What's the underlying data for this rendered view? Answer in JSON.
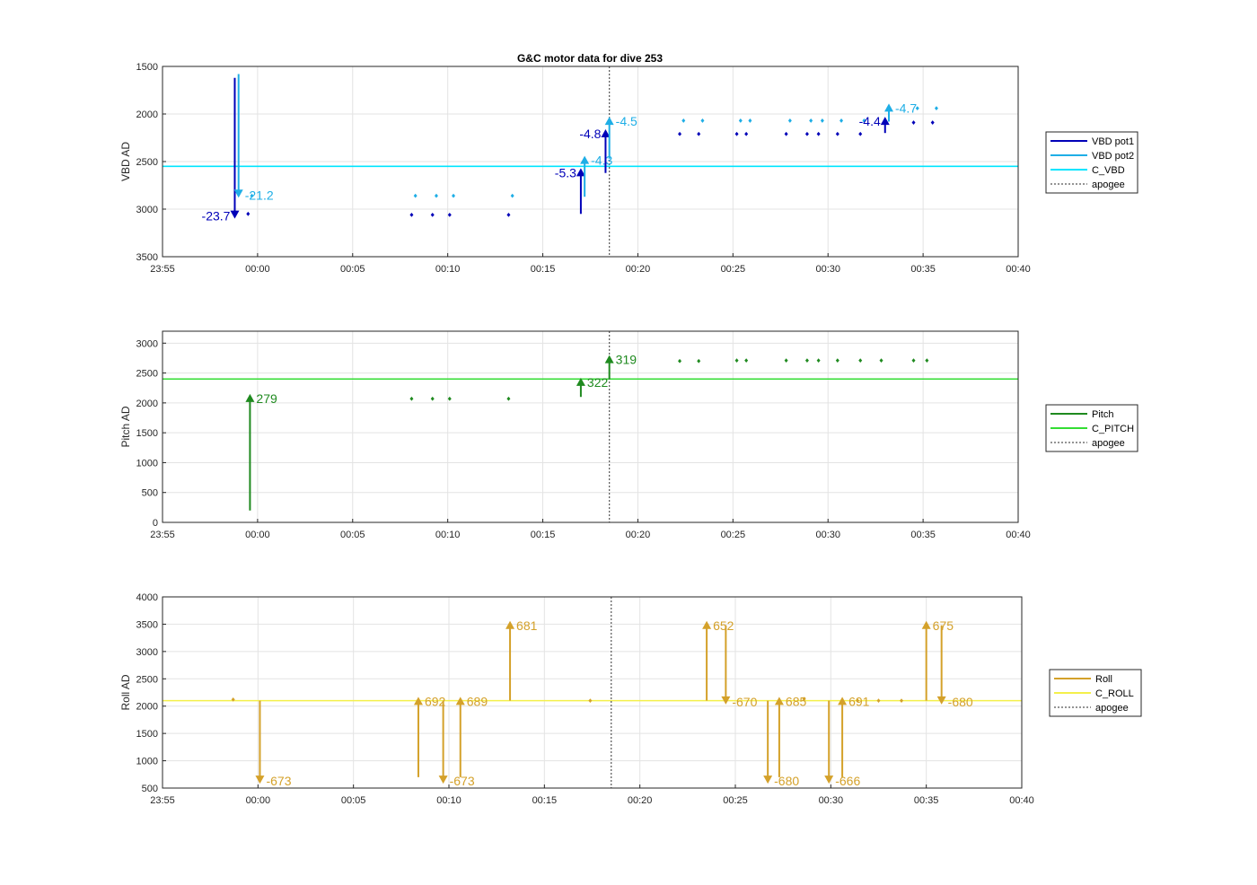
{
  "title": "G&C motor data for dive 253",
  "colors": {
    "vbd_pot1": "#0000b8",
    "vbd_pot2": "#1eaee6",
    "c_vbd": "#00e5ff",
    "pitch": "#1f8a1f",
    "c_pitch": "#33dd33",
    "roll": "#d4a12a",
    "c_roll": "#f4f04a",
    "apogee": "#555555"
  },
  "chart_data": [
    {
      "type": "line",
      "title": "G&C motor data for dive 253",
      "xlabel": "",
      "ylabel": "VBD AD",
      "x_unit": "minutes from 23:55",
      "xlim": [
        0,
        45
      ],
      "xticks": [
        "23:55",
        "00:00",
        "00:05",
        "00:10",
        "00:15",
        "00:20",
        "00:25",
        "00:30",
        "00:35",
        "00:40"
      ],
      "ylim": [
        1500,
        3500
      ],
      "y_reversed": true,
      "yticks": [
        "1500",
        "2000",
        "2500",
        "3000",
        "3500"
      ],
      "grid": true,
      "legend_position": "outside-right",
      "legend": [
        "VBD pot1",
        "VBD pot2",
        "C_VBD",
        "apogee"
      ],
      "apogee_x": 23.5,
      "hlines": [
        {
          "name": "C_VBD",
          "y": 2550,
          "color": "#00e5ff"
        }
      ],
      "arrows": [
        {
          "series": "VBD pot1",
          "x": 3.8,
          "y0": 1620,
          "y1": 3100,
          "label": "-23.7",
          "side": "left"
        },
        {
          "series": "VBD pot2",
          "x": 4.0,
          "y0": 1580,
          "y1": 2880,
          "label": "-21.2",
          "side": "right"
        },
        {
          "series": "VBD pot1",
          "x": 22.0,
          "y0": 3050,
          "y1": 2570,
          "label": "-5.3",
          "side": "left"
        },
        {
          "series": "VBD pot2",
          "x": 22.2,
          "y0": 2870,
          "y1": 2440,
          "label": "-4.3",
          "side": "right"
        },
        {
          "series": "VBD pot1",
          "x": 23.3,
          "y0": 2620,
          "y1": 2160,
          "label": "-4.8",
          "side": "left"
        },
        {
          "series": "VBD pot2",
          "x": 23.5,
          "y0": 2470,
          "y1": 2030,
          "label": "-4.5",
          "side": "right"
        },
        {
          "series": "VBD pot1",
          "x": 38.0,
          "y0": 2200,
          "y1": 2030,
          "label": "-4.4",
          "side": "left"
        },
        {
          "series": "VBD pot2",
          "x": 38.2,
          "y0": 2080,
          "y1": 1890,
          "label": "-4.7",
          "side": "right"
        }
      ],
      "series": [
        {
          "name": "VBD pot1",
          "x": [
            4.5,
            13.1,
            14.2,
            15.1,
            18.2,
            27.2,
            28.2,
            30.2,
            30.7,
            32.8,
            33.9,
            34.5,
            35.5,
            36.7,
            39.5,
            40.5
          ],
          "y": [
            3050,
            3060,
            3060,
            3060,
            3060,
            2210,
            2210,
            2210,
            2210,
            2210,
            2210,
            2210,
            2210,
            2210,
            2090,
            2090
          ]
        },
        {
          "name": "VBD pot2",
          "x": [
            4.7,
            13.3,
            14.4,
            15.3,
            18.4,
            27.4,
            28.4,
            30.4,
            30.9,
            33.0,
            34.1,
            34.7,
            35.7,
            36.9,
            39.7,
            40.7
          ],
          "y": [
            2860,
            2860,
            2860,
            2860,
            2860,
            2070,
            2070,
            2070,
            2070,
            2070,
            2070,
            2070,
            2070,
            2070,
            1940,
            1940
          ]
        }
      ]
    },
    {
      "type": "line",
      "xlabel": "",
      "ylabel": "Pitch AD",
      "x_unit": "minutes from 23:55",
      "xlim": [
        0,
        45
      ],
      "xticks": [
        "23:55",
        "00:00",
        "00:05",
        "00:10",
        "00:15",
        "00:20",
        "00:25",
        "00:30",
        "00:35",
        "00:40"
      ],
      "ylim": [
        0,
        3200
      ],
      "yticks": [
        "0",
        "500",
        "1000",
        "1500",
        "2000",
        "2500",
        "3000"
      ],
      "grid": true,
      "legend_position": "outside-right",
      "legend": [
        "Pitch",
        "C_PITCH",
        "apogee"
      ],
      "apogee_x": 23.5,
      "hlines": [
        {
          "name": "C_PITCH",
          "y": 2400,
          "color": "#33dd33"
        }
      ],
      "arrows": [
        {
          "series": "Pitch",
          "x": 4.6,
          "y0": 200,
          "y1": 2150,
          "label": "279",
          "side": "right"
        },
        {
          "series": "Pitch",
          "x": 22.0,
          "y0": 2100,
          "y1": 2420,
          "label": "322",
          "side": "right"
        },
        {
          "series": "Pitch",
          "x": 23.5,
          "y0": 2400,
          "y1": 2800,
          "label": "319",
          "side": "right"
        }
      ],
      "series": [
        {
          "name": "Pitch",
          "x": [
            13.1,
            14.2,
            15.1,
            18.2,
            27.2,
            28.2,
            30.2,
            30.7,
            32.8,
            33.9,
            34.5,
            35.5,
            36.7,
            37.8,
            39.5,
            40.2
          ],
          "y": [
            2070,
            2070,
            2070,
            2070,
            2700,
            2700,
            2710,
            2710,
            2710,
            2710,
            2710,
            2710,
            2710,
            2710,
            2710,
            2710
          ]
        }
      ]
    },
    {
      "type": "line",
      "xlabel": "",
      "ylabel": "Roll AD",
      "x_unit": "minutes from 23:55",
      "xlim": [
        0,
        45
      ],
      "xticks": [
        "23:55",
        "00:00",
        "00:05",
        "00:10",
        "00:15",
        "00:20",
        "00:25",
        "00:30",
        "00:35",
        "00:40"
      ],
      "ylim": [
        500,
        4000
      ],
      "yticks": [
        "500",
        "1000",
        "1500",
        "2000",
        "2500",
        "3000",
        "3500",
        "4000"
      ],
      "grid": true,
      "legend_position": "outside-right",
      "legend": [
        "Roll",
        "C_ROLL",
        "apogee"
      ],
      "apogee_x": 23.5,
      "hlines": [
        {
          "name": "C_ROLL",
          "y": 2100,
          "color": "#f4f04a"
        }
      ],
      "arrows": [
        {
          "series": "Roll",
          "x": 5.1,
          "y0": 2100,
          "y1": 580,
          "label": "-673",
          "side": "right"
        },
        {
          "series": "Roll",
          "x": 13.4,
          "y0": 700,
          "y1": 2170,
          "label": "692",
          "side": "right"
        },
        {
          "series": "Roll",
          "x": 14.7,
          "y0": 2100,
          "y1": 580,
          "label": "-673",
          "side": "right"
        },
        {
          "series": "Roll",
          "x": 15.6,
          "y0": 700,
          "y1": 2170,
          "label": "689",
          "side": "right"
        },
        {
          "series": "Roll",
          "x": 18.2,
          "y0": 2100,
          "y1": 3560,
          "label": "681",
          "side": "right"
        },
        {
          "series": "Roll",
          "x": 28.5,
          "y0": 2100,
          "y1": 3560,
          "label": "652",
          "side": "right"
        },
        {
          "series": "Roll",
          "x": 29.5,
          "y0": 3480,
          "y1": 2030,
          "label": "-670",
          "side": "right"
        },
        {
          "series": "Roll",
          "x": 31.7,
          "y0": 2100,
          "y1": 580,
          "label": "-680",
          "side": "right"
        },
        {
          "series": "Roll",
          "x": 32.3,
          "y0": 700,
          "y1": 2170,
          "label": "685",
          "side": "right"
        },
        {
          "series": "Roll",
          "x": 34.9,
          "y0": 2100,
          "y1": 580,
          "label": "-666",
          "side": "right"
        },
        {
          "series": "Roll",
          "x": 35.6,
          "y0": 700,
          "y1": 2170,
          "label": "691",
          "side": "right"
        },
        {
          "series": "Roll",
          "x": 40.0,
          "y0": 2100,
          "y1": 3560,
          "label": "675",
          "side": "right"
        },
        {
          "series": "Roll",
          "x": 40.8,
          "y0": 3480,
          "y1": 2030,
          "label": "-680",
          "side": "right"
        }
      ],
      "series": [
        {
          "name": "Roll",
          "x": [
            3.7,
            22.4,
            33.6,
            36.4,
            37.5,
            38.7
          ],
          "y": [
            2120,
            2100,
            2130,
            2100,
            2100,
            2100
          ]
        }
      ]
    }
  ]
}
